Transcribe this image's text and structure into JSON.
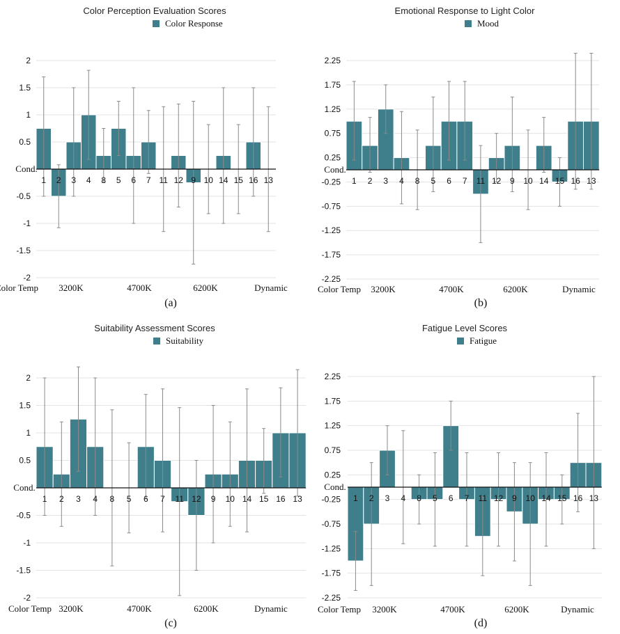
{
  "colors": {
    "bar": "#3f7f8c",
    "bar_edge": "#ffffff",
    "error": "#8a8a8a",
    "grid": "#e3e3e3",
    "axis": "#111111"
  },
  "chart_data": [
    {
      "type": "bar",
      "panel_label": "(a)",
      "title": "Color Perception Evaluation Scores",
      "legend": "Color Response",
      "xlabel": "Cond.",
      "categories": [
        "1",
        "2",
        "3",
        "4",
        "8",
        "5",
        "6",
        "7",
        "11",
        "12",
        "9",
        "10",
        "14",
        "15",
        "16",
        "13"
      ],
      "values": [
        0.75,
        -0.5,
        0.5,
        1,
        0.25,
        0.75,
        0.25,
        0.5,
        0,
        0.25,
        -0.25,
        0,
        0.25,
        0,
        0.5,
        0
      ],
      "err_low": [
        -0.5,
        -1.08,
        -0.5,
        0.18,
        -0.25,
        0.25,
        -1,
        -0.08,
        -1.15,
        -0.7,
        -1.75,
        -0.82,
        -1,
        -0.82,
        -0.5,
        -1.15
      ],
      "err_high": [
        1.7,
        0.08,
        1.5,
        1.82,
        0.75,
        1.25,
        1.5,
        1.08,
        1.15,
        1.2,
        1.25,
        0.82,
        1.5,
        0.82,
        1.5,
        1.15
      ],
      "ylim": [
        -2,
        2
      ],
      "yticks": [
        2,
        1.5,
        1,
        0.5,
        -0.5,
        -1,
        -1.5,
        -2
      ],
      "ytick_labels": [
        "2",
        "1.5",
        "1",
        "0.5",
        "-0.5",
        "-1",
        "-1.5",
        "-2"
      ],
      "group_title": "Color Temp",
      "groups": [
        "3200K",
        "4700K",
        "6200K",
        "Dynamic"
      ]
    },
    {
      "type": "bar",
      "panel_label": "(b)",
      "title": "Emotional Response to Light Color",
      "legend": "Mood",
      "xlabel": "Cond.",
      "categories": [
        "1",
        "2",
        "3",
        "4",
        "8",
        "5",
        "6",
        "7",
        "11",
        "12",
        "9",
        "10",
        "14",
        "15",
        "16",
        "13"
      ],
      "values": [
        1,
        0.5,
        1.25,
        0.25,
        0,
        0.5,
        1,
        1,
        -0.5,
        0.25,
        0.5,
        0,
        0.5,
        -0.25,
        1,
        1
      ],
      "err_low": [
        0.2,
        -0.05,
        0.75,
        -0.7,
        -0.82,
        -0.45,
        0.2,
        0.2,
        -1.5,
        -0.25,
        -0.45,
        -0.82,
        -0.05,
        -0.75,
        -0.4,
        -0.4
      ],
      "err_high": [
        1.82,
        1.08,
        1.75,
        1.2,
        0.82,
        1.5,
        1.82,
        1.82,
        0.5,
        0.75,
        1.5,
        0.82,
        1.08,
        0.25,
        2.4,
        2.4
      ],
      "ylim": [
        -2.25,
        2.25
      ],
      "yticks": [
        2.25,
        1.75,
        1.25,
        0.75,
        0.25,
        -0.25,
        -0.75,
        -1.25,
        -1.75,
        -2.25
      ],
      "ytick_labels": [
        "2.25",
        "1.75",
        "1.25",
        "0.75",
        "0.25",
        "-0.25",
        "-0.75",
        "-1.25",
        "-1.75",
        "-2.25"
      ],
      "group_title": "Color Temp",
      "groups": [
        "3200K",
        "4700K",
        "6200K",
        "Dynamic"
      ]
    },
    {
      "type": "bar",
      "panel_label": "(c)",
      "title": "Suitability Assessment Scores",
      "legend": "Suitability",
      "xlabel": "Cond.",
      "categories": [
        "1",
        "2",
        "3",
        "4",
        "8",
        "5",
        "6",
        "7",
        "11",
        "12",
        "9",
        "10",
        "14",
        "15",
        "16",
        "13"
      ],
      "values": [
        0.75,
        0.25,
        1.25,
        0.75,
        0,
        0,
        0.75,
        0.5,
        -0.25,
        -0.5,
        0.25,
        0.25,
        0.5,
        0.5,
        1,
        1
      ],
      "err_low": [
        -0.5,
        -0.7,
        0.3,
        -0.5,
        -1.42,
        -0.82,
        -0.2,
        -0.8,
        -1.96,
        -1.5,
        -1,
        -0.7,
        -0.8,
        -0.1,
        0.2,
        -0.15
      ],
      "err_high": [
        2,
        1.2,
        2.2,
        2,
        1.42,
        0.82,
        1.7,
        1.8,
        1.46,
        0.5,
        1.5,
        1.2,
        1.8,
        1.08,
        1.82,
        2.15
      ],
      "ylim": [
        -2,
        2
      ],
      "yticks": [
        2,
        1.5,
        1,
        0.5,
        -0.5,
        -1,
        -1.5,
        -2
      ],
      "ytick_labels": [
        "2",
        "1.5",
        "1",
        "0.5",
        "-0.5",
        "-1",
        "-1.5",
        "-2"
      ],
      "group_title": "Color Temp",
      "groups": [
        "3200K",
        "4700K",
        "6200K",
        "Dynamic"
      ]
    },
    {
      "type": "bar",
      "panel_label": "(d)",
      "title": "Fatigue Level Scores",
      "legend": "Fatigue",
      "xlabel": "Cond.",
      "categories": [
        "1",
        "2",
        "3",
        "4",
        "8",
        "5",
        "6",
        "7",
        "11",
        "12",
        "9",
        "10",
        "14",
        "15",
        "16",
        "13"
      ],
      "values": [
        -1.5,
        -0.75,
        0.75,
        0,
        -0.25,
        -0.25,
        1.25,
        -0.25,
        -1,
        -0.25,
        -0.5,
        -0.75,
        -0.25,
        -0.25,
        0.5,
        0.5
      ],
      "err_low": [
        -2.1,
        -2,
        0.25,
        -1.15,
        -0.75,
        -1.2,
        0.75,
        -1.2,
        -1.8,
        -1.2,
        -1.5,
        -2,
        -1.2,
        -0.75,
        -0.5,
        -1.25
      ],
      "err_high": [
        -0.9,
        0.5,
        1.25,
        1.15,
        0.25,
        0.7,
        1.75,
        0.7,
        -0.2,
        0.7,
        0.5,
        0.5,
        0.7,
        0.25,
        1.5,
        2.25
      ],
      "ylim": [
        -2.25,
        2.25
      ],
      "yticks": [
        2.25,
        1.75,
        1.25,
        0.75,
        0.25,
        -0.25,
        -0.75,
        -1.25,
        -1.75,
        -2.25
      ],
      "ytick_labels": [
        "2.25",
        "1.75",
        "1.25",
        "0.75",
        "0.25",
        "-0.25",
        "-0.75",
        "-1.25",
        "-1.75",
        "-2.25"
      ],
      "group_title": "Color Temp",
      "groups": [
        "3200K",
        "4700K",
        "6200K",
        "Dynamic"
      ]
    }
  ]
}
